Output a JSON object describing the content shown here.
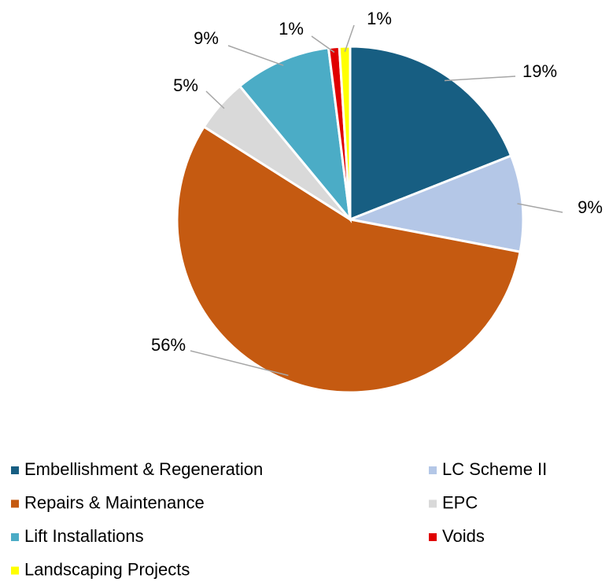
{
  "chart_data": {
    "type": "pie",
    "categories": [
      "Embellishment & Regeneration",
      "LC Scheme II",
      "Repairs & Maintenance",
      "EPC",
      "Lift Installations",
      "Voids",
      "Landscaping Projects"
    ],
    "values": [
      19,
      9,
      56,
      5,
      9,
      1,
      1
    ],
    "value_labels": [
      "19%",
      "9%",
      "56%",
      "5%",
      "9%",
      "1%",
      "1%"
    ],
    "colors": [
      "#175e82",
      "#b4c7e7",
      "#c55a11",
      "#d9d9d9",
      "#4bacc6",
      "#e00000",
      "#ffff00"
    ],
    "legend": "bottom"
  }
}
